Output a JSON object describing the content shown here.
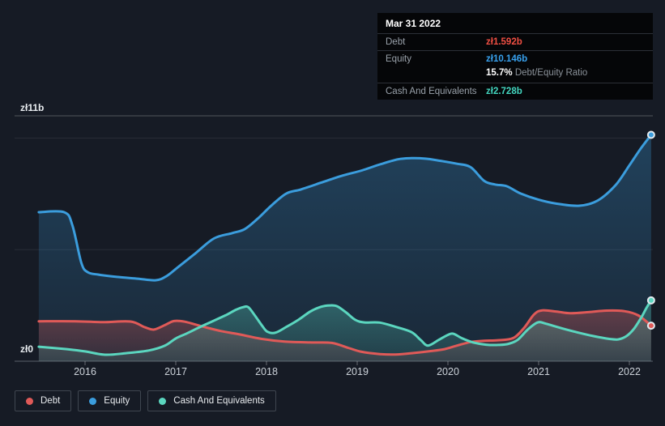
{
  "y_axis": {
    "top_label": "zł11b",
    "bottom_label": "zł0"
  },
  "tooltip": {
    "date": "Mar 31 2022",
    "debt": {
      "label": "Debt",
      "value": "zł1.592b"
    },
    "equity": {
      "label": "Equity",
      "value": "zł10.146b"
    },
    "ratio": {
      "value": "15.7%",
      "label": "Debt/Equity Ratio"
    },
    "cash": {
      "label": "Cash And Equivalents",
      "value": "zł2.728b"
    }
  },
  "legend": {
    "items": [
      {
        "label": "Debt"
      },
      {
        "label": "Equity"
      },
      {
        "label": "Cash And Equivalents"
      }
    ]
  },
  "colors": {
    "debt": "#e05a58",
    "equity": "#3b9ddd",
    "cash": "#5bd6bf",
    "debt_value": "#f04f43",
    "equity_value": "#38a1ee",
    "cash_value": "#43d6bf"
  },
  "chart_data": {
    "type": "area",
    "unit": "zł b (PLN billions)",
    "x_ticks": [
      2016,
      2017,
      2018,
      2019,
      2020,
      2021,
      2022
    ],
    "ylim": [
      0,
      11
    ],
    "gridlines": [
      0,
      5,
      10,
      11
    ],
    "labeled_gridlines": {
      "0": "zł0",
      "11": "zł11b"
    },
    "legend_position": "bottom-left",
    "highlight_date": "Mar 31 2022",
    "end_values": {
      "Debt": 1.592,
      "Equity": 10.146,
      "Cash And Equivalents": 2.728,
      "Debt/Equity Ratio %": 15.7
    },
    "series": [
      {
        "name": "Equity",
        "color": "#3b9ddd",
        "points": [
          [
            2015.49,
            6.68
          ],
          [
            2015.77,
            6.68
          ],
          [
            2015.86,
            6.1
          ],
          [
            2015.96,
            4.4
          ],
          [
            2016.03,
            3.99
          ],
          [
            2016.15,
            3.88
          ],
          [
            2016.35,
            3.78
          ],
          [
            2016.58,
            3.7
          ],
          [
            2016.78,
            3.63
          ],
          [
            2016.9,
            3.82
          ],
          [
            2017.02,
            4.2
          ],
          [
            2017.2,
            4.78
          ],
          [
            2017.42,
            5.5
          ],
          [
            2017.62,
            5.74
          ],
          [
            2017.76,
            5.92
          ],
          [
            2017.9,
            6.38
          ],
          [
            2018.06,
            7.0
          ],
          [
            2018.22,
            7.52
          ],
          [
            2018.38,
            7.7
          ],
          [
            2018.6,
            8.0
          ],
          [
            2018.82,
            8.3
          ],
          [
            2019.05,
            8.55
          ],
          [
            2019.25,
            8.82
          ],
          [
            2019.45,
            9.05
          ],
          [
            2019.6,
            9.1
          ],
          [
            2019.75,
            9.08
          ],
          [
            2019.92,
            8.98
          ],
          [
            2020.1,
            8.85
          ],
          [
            2020.25,
            8.7
          ],
          [
            2020.4,
            8.08
          ],
          [
            2020.52,
            7.92
          ],
          [
            2020.65,
            7.84
          ],
          [
            2020.8,
            7.52
          ],
          [
            2021.0,
            7.24
          ],
          [
            2021.2,
            7.06
          ],
          [
            2021.45,
            6.97
          ],
          [
            2021.65,
            7.2
          ],
          [
            2021.85,
            7.9
          ],
          [
            2022.0,
            8.78
          ],
          [
            2022.12,
            9.5
          ],
          [
            2022.24,
            10.146
          ]
        ]
      },
      {
        "name": "Debt",
        "color": "#e05a58",
        "points": [
          [
            2015.49,
            1.79
          ],
          [
            2015.9,
            1.79
          ],
          [
            2016.2,
            1.75
          ],
          [
            2016.5,
            1.78
          ],
          [
            2016.66,
            1.52
          ],
          [
            2016.76,
            1.42
          ],
          [
            2016.88,
            1.62
          ],
          [
            2016.98,
            1.8
          ],
          [
            2017.1,
            1.77
          ],
          [
            2017.3,
            1.55
          ],
          [
            2017.5,
            1.35
          ],
          [
            2017.68,
            1.22
          ],
          [
            2017.95,
            1.0
          ],
          [
            2018.2,
            0.88
          ],
          [
            2018.5,
            0.84
          ],
          [
            2018.72,
            0.82
          ],
          [
            2018.9,
            0.6
          ],
          [
            2019.05,
            0.42
          ],
          [
            2019.25,
            0.32
          ],
          [
            2019.42,
            0.3
          ],
          [
            2019.6,
            0.36
          ],
          [
            2019.8,
            0.45
          ],
          [
            2019.95,
            0.53
          ],
          [
            2020.1,
            0.7
          ],
          [
            2020.25,
            0.86
          ],
          [
            2020.4,
            0.92
          ],
          [
            2020.55,
            0.94
          ],
          [
            2020.72,
            1.04
          ],
          [
            2020.84,
            1.5
          ],
          [
            2020.95,
            2.1
          ],
          [
            2021.04,
            2.28
          ],
          [
            2021.2,
            2.22
          ],
          [
            2021.35,
            2.15
          ],
          [
            2021.55,
            2.2
          ],
          [
            2021.75,
            2.27
          ],
          [
            2021.95,
            2.24
          ],
          [
            2022.1,
            2.05
          ],
          [
            2022.24,
            1.592
          ]
        ]
      },
      {
        "name": "Cash And Equivalents",
        "color": "#5bd6bf",
        "points": [
          [
            2015.49,
            0.65
          ],
          [
            2015.8,
            0.54
          ],
          [
            2016.0,
            0.44
          ],
          [
            2016.22,
            0.29
          ],
          [
            2016.45,
            0.36
          ],
          [
            2016.7,
            0.48
          ],
          [
            2016.88,
            0.7
          ],
          [
            2017.0,
            1.02
          ],
          [
            2017.12,
            1.24
          ],
          [
            2017.25,
            1.5
          ],
          [
            2017.4,
            1.78
          ],
          [
            2017.55,
            2.06
          ],
          [
            2017.66,
            2.3
          ],
          [
            2017.74,
            2.42
          ],
          [
            2017.8,
            2.42
          ],
          [
            2017.88,
            2.0
          ],
          [
            2017.95,
            1.6
          ],
          [
            2018.01,
            1.32
          ],
          [
            2018.1,
            1.28
          ],
          [
            2018.22,
            1.54
          ],
          [
            2018.35,
            1.85
          ],
          [
            2018.48,
            2.22
          ],
          [
            2018.6,
            2.44
          ],
          [
            2018.7,
            2.5
          ],
          [
            2018.78,
            2.46
          ],
          [
            2018.88,
            2.18
          ],
          [
            2018.98,
            1.85
          ],
          [
            2019.08,
            1.74
          ],
          [
            2019.25,
            1.73
          ],
          [
            2019.44,
            1.52
          ],
          [
            2019.6,
            1.3
          ],
          [
            2019.7,
            0.95
          ],
          [
            2019.78,
            0.7
          ],
          [
            2019.9,
            0.96
          ],
          [
            2020.0,
            1.18
          ],
          [
            2020.06,
            1.23
          ],
          [
            2020.16,
            1.02
          ],
          [
            2020.28,
            0.84
          ],
          [
            2020.42,
            0.74
          ],
          [
            2020.56,
            0.73
          ],
          [
            2020.67,
            0.78
          ],
          [
            2020.77,
            0.96
          ],
          [
            2020.88,
            1.42
          ],
          [
            2020.99,
            1.74
          ],
          [
            2021.08,
            1.68
          ],
          [
            2021.25,
            1.48
          ],
          [
            2021.42,
            1.3
          ],
          [
            2021.6,
            1.13
          ],
          [
            2021.78,
            1.0
          ],
          [
            2021.88,
            0.98
          ],
          [
            2021.97,
            1.13
          ],
          [
            2022.05,
            1.45
          ],
          [
            2022.13,
            1.95
          ],
          [
            2022.19,
            2.4
          ],
          [
            2022.24,
            2.728
          ]
        ]
      }
    ]
  }
}
